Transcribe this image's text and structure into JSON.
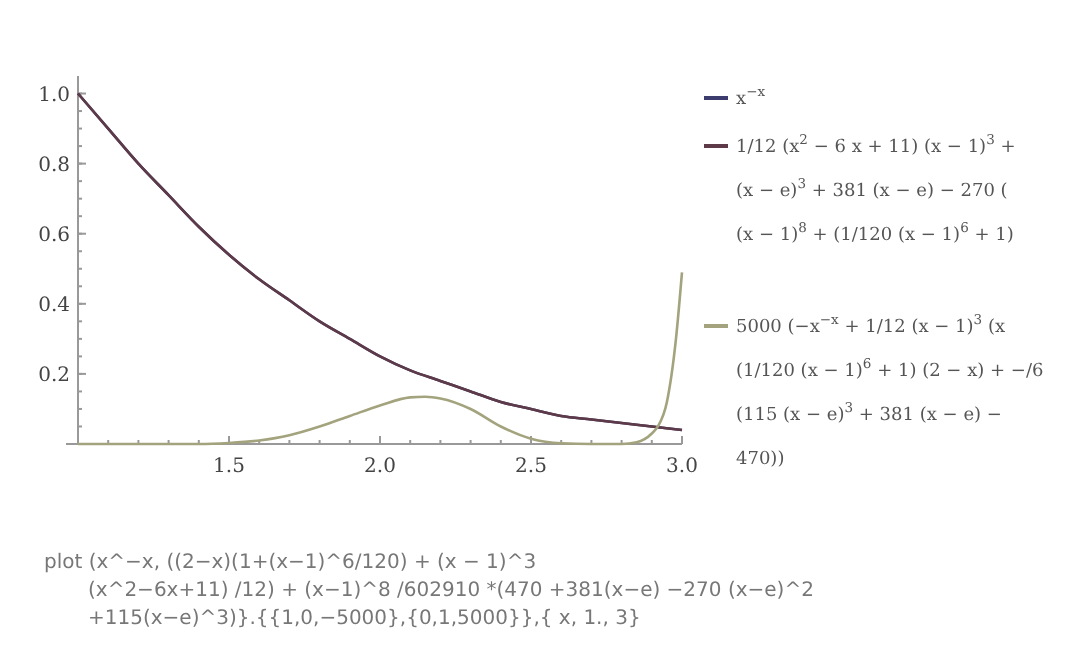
{
  "chart_data": {
    "type": "line",
    "xlim": [
      1,
      3
    ],
    "xticks": [
      {
        "value": 1.5,
        "label": "1.5"
      },
      {
        "value": 2,
        "label": "2.0"
      },
      {
        "value": 2.5,
        "label": "2.5"
      },
      {
        "value": 3,
        "label": "3.0"
      }
    ],
    "ylim": [
      0,
      1.05
    ],
    "yticks": [
      0.2,
      0.4,
      0.6,
      0.8,
      {
        "value": 1,
        "label": "1.0"
      }
    ],
    "legend": "right",
    "grid": false,
    "line_style": "solid",
    "series": [
      {
        "name": "x$^{−x}$",
        "color": "#3c3c6e",
        "x": [
          1,
          1.1,
          1.2,
          1.3,
          1.4,
          1.5,
          1.6,
          1.7,
          1.8,
          1.9,
          2,
          2.1,
          2.2,
          2.3,
          2.4,
          2.5,
          2.6,
          2.7,
          2.8,
          2.9,
          3
        ],
        "values": [
          1,
          0.9,
          0.8,
          0.71,
          0.62,
          0.54,
          0.47,
          0.41,
          0.35,
          0.3,
          0.25,
          0.21,
          0.18,
          0.15,
          0.12,
          0.1,
          0.08,
          0.07,
          0.06,
          0.05,
          0.04
        ]
      },
      {
        "name": "1/12 (x$^{2}$ − 6 x + 11) (x − 1)$^{3}$ +\n(x − e)$^{3}$ + 381 (x − e) − 270 (\n(x − 1)$^{8}$ + (1/120 (x − 1)$^{6}$ + 1)",
        "color": "#5e3a48",
        "x": [
          1,
          1.1,
          1.2,
          1.3,
          1.4,
          1.5,
          1.6,
          1.7,
          1.8,
          1.9,
          2,
          2.1,
          2.2,
          2.3,
          2.4,
          2.5,
          2.6,
          2.7,
          2.8,
          2.9,
          3
        ],
        "values": [
          1,
          0.9,
          0.8,
          0.71,
          0.62,
          0.54,
          0.47,
          0.41,
          0.35,
          0.3,
          0.25,
          0.21,
          0.18,
          0.15,
          0.12,
          0.1,
          0.08,
          0.07,
          0.06,
          0.05,
          0.04
        ]
      },
      {
        "name": "5000 (−x$^{−x}$ + 1/12 (x − 1)$^{3}$ (x\n(1/120 (x − 1)$^{6}$ + 1) (2 − x) + −/6\n(115 (x − e)$^{3}$ + 381 (x − e) −\n470))",
        "color": "#a3a37e",
        "x": [
          1,
          1.4,
          1.5,
          1.6,
          1.7,
          1.8,
          1.9,
          2,
          2.1,
          2.15,
          2.2,
          2.3,
          2.4,
          2.5,
          2.6,
          2.7,
          2.8,
          2.85,
          2.9,
          2.92,
          2.95,
          2.98,
          3
        ],
        "values": [
          0,
          0,
          0.003,
          0.01,
          0.025,
          0.05,
          0.08,
          0.11,
          0.133,
          0.135,
          0.13,
          0.1,
          0.05,
          0.015,
          0.002,
          0,
          0,
          0.005,
          0.03,
          0.05,
          0.12,
          0.3,
          0.49
        ]
      }
    ],
    "annotations": [
      "plot (x^−x, ((2−x)(1+(x−1)^6/120) + (x − 1)^3",
      "(x^2−6x+11) /12) + (x−1)^8 /602910 *(470 +381(x−e) −270 (x−e)^2",
      "+115(x−e)^3)}.{{1,0,−5000},{0,1,5000}},{ x, 1., 3}"
    ]
  }
}
